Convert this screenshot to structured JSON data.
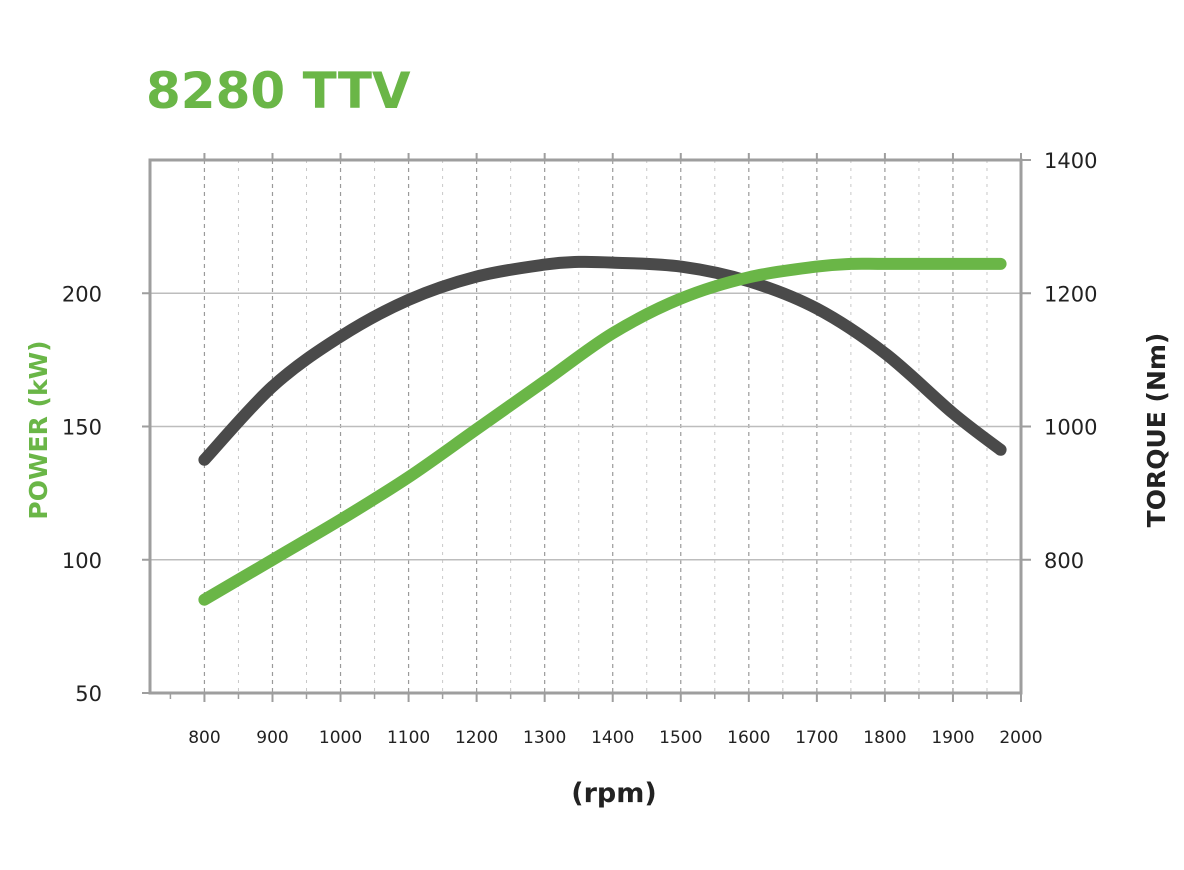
{
  "chart_data": {
    "type": "line",
    "title": "8280 TTV",
    "xlabel": "(rpm)",
    "ylabel_left": "POWER (kW)",
    "ylabel_right": "TORQUE (Nm)",
    "x_ticks": [
      "800",
      "900",
      "1000",
      "1100",
      "1200",
      "1300",
      "1400",
      "1500",
      "1600",
      "1700",
      "1800",
      "1900",
      "2000"
    ],
    "y_left_ticks": [
      "50",
      "100",
      "150",
      "200"
    ],
    "y_right_ticks": [
      "800",
      "1000",
      "1200",
      "1400"
    ],
    "xlim": [
      720,
      2000
    ],
    "ylim_left": [
      50,
      250
    ],
    "ylim_right": [
      600,
      1400
    ],
    "grid": true,
    "colors": {
      "power": "#6ab647",
      "torque": "#4a4a4a",
      "title": "#6ab647",
      "grid": "#bdbdbd",
      "axis": "#9e9e9e"
    },
    "series": [
      {
        "name": "POWER (kW)",
        "axis": "left",
        "x": [
          800,
          900,
          1000,
          1100,
          1200,
          1300,
          1400,
          1500,
          1600,
          1700,
          1750,
          1800,
          1900,
          1970
        ],
        "values": [
          85,
          100,
          115,
          131,
          149,
          167,
          185,
          198,
          206,
          210,
          211,
          211,
          211,
          211
        ]
      },
      {
        "name": "TORQUE (Nm)",
        "axis": "right",
        "x": [
          800,
          900,
          1000,
          1100,
          1200,
          1300,
          1350,
          1400,
          1500,
          1600,
          1700,
          1800,
          1900,
          1970
        ],
        "values": [
          950,
          1060,
          1135,
          1190,
          1225,
          1243,
          1247,
          1246,
          1240,
          1218,
          1177,
          1110,
          1020,
          965
        ]
      }
    ]
  }
}
